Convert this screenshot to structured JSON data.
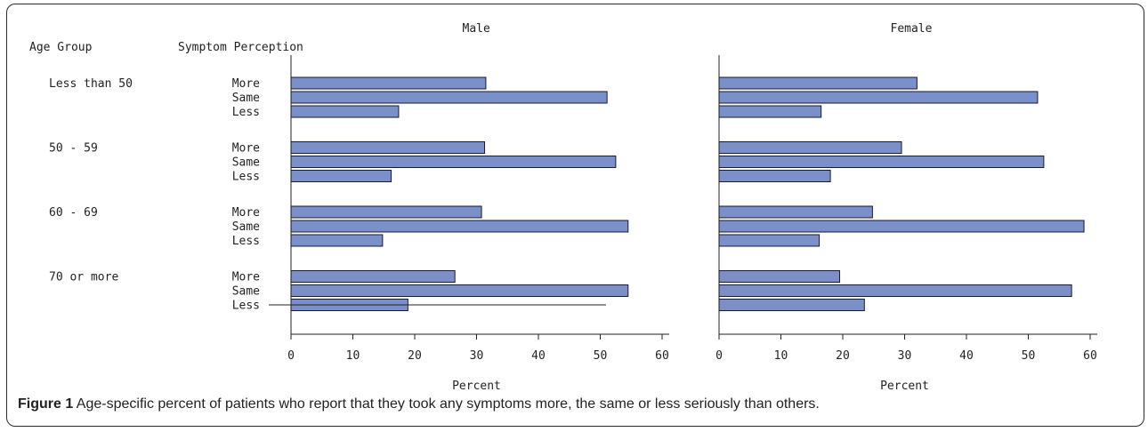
{
  "header": {
    "age_group_label": "Age Group",
    "symptom_label": "Symptom Perception"
  },
  "caption": {
    "label": "Figure 1",
    "text": "Age-specific percent of patients who report that they took any symptoms more, the same or less seriously than others."
  },
  "chart_data": [
    {
      "type": "bar",
      "orientation": "horizontal",
      "title": "Male",
      "xlabel": "Percent",
      "xlim": [
        0,
        60
      ],
      "xticks": [
        0,
        10,
        20,
        30,
        40,
        50,
        60
      ],
      "groups": [
        "Less than 50",
        "50 - 59",
        "60 - 69",
        "70 or more"
      ],
      "categories": [
        "More",
        "Same",
        "Less"
      ],
      "values": [
        [
          31.5,
          51.1,
          17.4
        ],
        [
          31.3,
          52.5,
          16.2
        ],
        [
          30.8,
          54.5,
          14.8
        ],
        [
          26.5,
          54.5,
          18.9
        ]
      ],
      "bar_color": "#7b8fc8"
    },
    {
      "type": "bar",
      "orientation": "horizontal",
      "title": "Female",
      "xlabel": "Percent",
      "xlim": [
        0,
        60
      ],
      "xticks": [
        0,
        10,
        20,
        30,
        40,
        50,
        60
      ],
      "groups": [
        "Less than 50",
        "50 - 59",
        "60 - 69",
        "70 or more"
      ],
      "categories": [
        "More",
        "Same",
        "Less"
      ],
      "values": [
        [
          32.0,
          51.5,
          16.5
        ],
        [
          29.5,
          52.5,
          18.0
        ],
        [
          24.8,
          59.0,
          16.2
        ],
        [
          19.5,
          57.0,
          23.5
        ]
      ],
      "bar_color": "#7b8fc8"
    }
  ]
}
